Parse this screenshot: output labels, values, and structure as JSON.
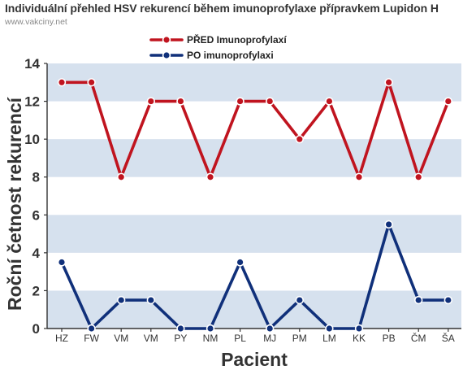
{
  "header": {
    "title": "Individuální přehled HSV rekurencí během imunoprofylaxe přípravkem Lupidon H",
    "subtitle": "www.vakciny.net"
  },
  "colors": {
    "before": "#c0141f",
    "after": "#10307a",
    "band": "#d6e1ee",
    "axis": "#333333"
  },
  "chart_data": {
    "type": "line",
    "title": "Individuální přehled HSV rekurencí během imunoprofylaxe přípravkem Lupidon H",
    "xlabel": "Pacient",
    "ylabel": "Roční četnost rekurencí",
    "ylim": [
      0,
      14
    ],
    "yticks": [
      0,
      2,
      4,
      6,
      8,
      10,
      12,
      14
    ],
    "grid": "alternating horizontal bands",
    "legend": "top-center",
    "categories": [
      "HZ",
      "FW",
      "VM",
      "VM",
      "PY",
      "NM",
      "PL",
      "MJ",
      "PM",
      "LM",
      "KK",
      "PB",
      "ČM",
      "ŠA"
    ],
    "series": [
      {
        "name": "PŘED Imunoprofylaxí",
        "color": "#c0141f",
        "values": [
          13,
          13,
          8,
          12,
          12,
          8,
          12,
          12,
          10,
          12,
          8,
          13,
          8,
          12
        ]
      },
      {
        "name": "PO imunoprofylaxi",
        "color": "#10307a",
        "values": [
          3.5,
          0,
          1.5,
          1.5,
          0,
          0,
          3.5,
          0,
          1.5,
          0,
          0,
          5.5,
          1.5,
          1.5
        ]
      }
    ]
  }
}
